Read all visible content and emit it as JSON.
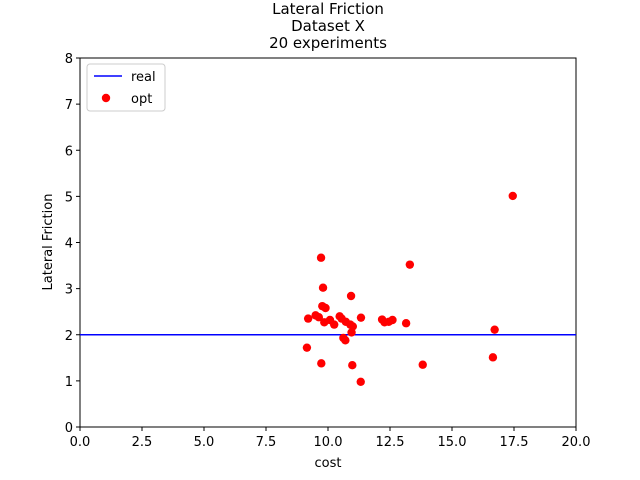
{
  "chart_data": {
    "type": "scatter",
    "title_lines": [
      "Lateral Friction",
      "Dataset X",
      "20 experiments"
    ],
    "xlabel": "cost",
    "ylabel": "Lateral Friction",
    "xlim": [
      0,
      20
    ],
    "ylim": [
      0,
      8
    ],
    "xticks": [
      0.0,
      2.5,
      5.0,
      7.5,
      10.0,
      12.5,
      15.0,
      17.5,
      20.0
    ],
    "xtick_labels": [
      "0.0",
      "2.5",
      "5.0",
      "7.5",
      "10.0",
      "12.5",
      "15.0",
      "17.5",
      "20.0"
    ],
    "yticks": [
      0,
      1,
      2,
      3,
      4,
      5,
      6,
      7,
      8
    ],
    "ytick_labels": [
      "0",
      "1",
      "2",
      "3",
      "4",
      "5",
      "6",
      "7",
      "8"
    ],
    "grid": false,
    "legend_position": "top-left",
    "series": [
      {
        "name": "real",
        "kind": "hline",
        "color": "#0000ff",
        "y": 2.0
      },
      {
        "name": "opt",
        "kind": "scatter",
        "color": "#ff0000",
        "points": [
          [
            9.72,
            3.67
          ],
          [
            9.8,
            3.02
          ],
          [
            13.3,
            3.52
          ],
          [
            17.45,
            5.01
          ],
          [
            10.93,
            2.84
          ],
          [
            9.2,
            2.35
          ],
          [
            9.5,
            2.42
          ],
          [
            9.63,
            2.38
          ],
          [
            9.77,
            2.62
          ],
          [
            9.9,
            2.58
          ],
          [
            9.85,
            2.27
          ],
          [
            10.08,
            2.32
          ],
          [
            10.25,
            2.22
          ],
          [
            10.47,
            2.4
          ],
          [
            10.55,
            2.35
          ],
          [
            10.72,
            2.28
          ],
          [
            10.9,
            2.22
          ],
          [
            11.0,
            2.18
          ],
          [
            10.95,
            2.05
          ],
          [
            10.62,
            1.93
          ],
          [
            10.7,
            1.88
          ],
          [
            11.33,
            2.37
          ],
          [
            12.18,
            2.33
          ],
          [
            12.28,
            2.27
          ],
          [
            12.45,
            2.28
          ],
          [
            12.6,
            2.32
          ],
          [
            13.15,
            2.25
          ],
          [
            16.72,
            2.11
          ],
          [
            9.15,
            1.72
          ],
          [
            9.73,
            1.38
          ],
          [
            10.98,
            1.34
          ],
          [
            13.82,
            1.35
          ],
          [
            16.65,
            1.51
          ],
          [
            11.32,
            0.98
          ]
        ]
      }
    ]
  }
}
